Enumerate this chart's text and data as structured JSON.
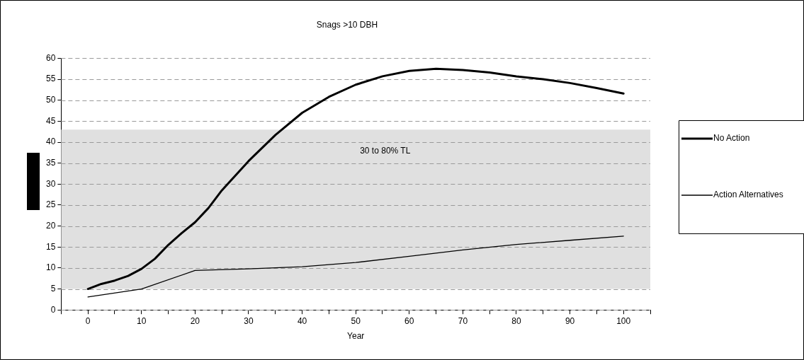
{
  "chart_data": {
    "type": "line",
    "title": "Snags >10 DBH",
    "xlabel": "Year",
    "xlim": [
      -5,
      105
    ],
    "xticks": [
      {
        "value": -5,
        "label": null
      },
      0,
      {
        "value": 5,
        "label": null
      },
      10,
      {
        "value": 15,
        "label": null
      },
      20,
      {
        "value": 25,
        "label": null
      },
      30,
      {
        "value": 35,
        "label": null
      },
      40,
      {
        "value": 45,
        "label": null
      },
      50,
      {
        "value": 55,
        "label": null
      },
      60,
      {
        "value": 65,
        "label": null
      },
      70,
      {
        "value": 75,
        "label": null
      },
      80,
      {
        "value": 85,
        "label": null
      },
      90,
      {
        "value": 95,
        "label": null
      },
      100,
      {
        "value": 105,
        "label": null
      }
    ],
    "ylim": [
      0,
      60
    ],
    "yticks": [
      0,
      5,
      10,
      15,
      20,
      25,
      30,
      35,
      40,
      45,
      50,
      55,
      60
    ],
    "grid": "y",
    "legend": "right",
    "marker": "none",
    "bands": [
      {
        "axis": "y",
        "from": 5,
        "to": 43,
        "label": "30 to 80% TL",
        "color": "#e0e0e0"
      }
    ],
    "series": [
      {
        "name": "No Action",
        "color": "#000000",
        "x": [
          0,
          2.5,
          5,
          7.5,
          10,
          12.5,
          15,
          17.5,
          20,
          22.5,
          25,
          27.5,
          30,
          35,
          40,
          45,
          50,
          55,
          60,
          65,
          70,
          75,
          80,
          85,
          90,
          95,
          100
        ],
        "values": [
          5,
          6.2,
          7,
          8.1,
          9.8,
          12.2,
          15.5,
          18.3,
          20.9,
          24.3,
          28.5,
          32,
          35.5,
          41.7,
          47,
          50.8,
          53.7,
          55.7,
          57,
          57.5,
          57.2,
          56.6,
          55.7,
          55,
          54.1,
          52.9,
          51.6
        ]
      },
      {
        "name": "Action Alternatives",
        "color": "#000000",
        "x": [
          0,
          10,
          20,
          30,
          40,
          50,
          60,
          70,
          80,
          90,
          100
        ],
        "values": [
          3.1,
          5,
          9.4,
          9.8,
          10.3,
          11.3,
          12.8,
          14.3,
          15.6,
          16.6,
          17.6
        ]
      }
    ]
  }
}
